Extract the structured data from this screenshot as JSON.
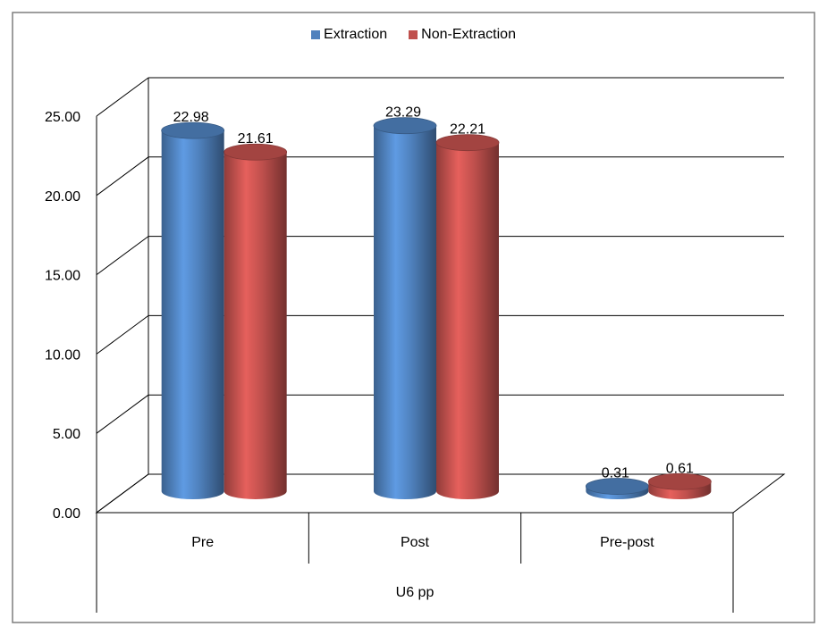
{
  "chart_data": {
    "type": "bar",
    "categories": [
      "Pre",
      "Post",
      "Pre-post"
    ],
    "group_label": "U6 pp",
    "series": [
      {
        "name": "Extraction",
        "values": [
          22.98,
          23.29,
          0.31
        ],
        "labels": [
          "22.98",
          "23.29",
          "0.31"
        ],
        "color": "#4f81bd"
      },
      {
        "name": "Non-Extraction",
        "values": [
          21.61,
          22.21,
          0.61
        ],
        "labels": [
          "21.61",
          "22.21",
          "0.61"
        ],
        "color": "#c0504d"
      }
    ],
    "ylim": [
      0,
      25
    ],
    "yticks": [
      "0.00",
      "5.00",
      "10.00",
      "15.00",
      "20.00",
      "25.00"
    ],
    "grid": true,
    "legend_position": "top",
    "style": "3d-cylinder"
  }
}
